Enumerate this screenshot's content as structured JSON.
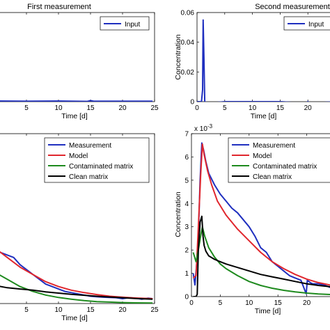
{
  "chart_data": [
    {
      "id": "tl",
      "type": "line",
      "title": "First measurement",
      "xlabel": "Time [d]",
      "ylabel": "",
      "xlim": [
        0,
        25
      ],
      "ylim": [
        0,
        0.06
      ],
      "xticks": [
        "5",
        "10",
        "15",
        "20",
        "25"
      ],
      "yticks": [],
      "legend": "top-right",
      "series": [
        {
          "name": "Input",
          "color": "#1f2fbf",
          "x": [
            0,
            5,
            10,
            14.5,
            15,
            15.5,
            20,
            24.7
          ],
          "y": [
            0.0004,
            0.0003,
            0.0004,
            0.0002,
            0.0007,
            0.0003,
            0.0003,
            0.0003
          ]
        }
      ]
    },
    {
      "id": "tr",
      "type": "line",
      "title": "Second measurement",
      "xlabel": "Time [d]",
      "ylabel": "Concentration",
      "xlim": [
        0,
        25
      ],
      "ylim": [
        0,
        0.06
      ],
      "xticks": [
        "0",
        "5",
        "10",
        "15",
        "20"
      ],
      "yticks": [
        "0",
        "0.02",
        "0.04",
        "0.06"
      ],
      "legend": "top-right",
      "series": [
        {
          "name": "Input",
          "color": "#1f2fbf",
          "x": [
            0,
            0.8,
            1.0,
            1.1,
            1.25,
            1.4,
            2,
            5,
            10,
            15,
            19.5,
            20,
            20.5,
            25
          ],
          "y": [
            0.0,
            0.0,
            0.008,
            0.055,
            0.03,
            0.0,
            -0.001,
            0.0,
            0.0,
            0.0,
            -0.001,
            0.0,
            -0.001,
            0.0
          ]
        }
      ]
    },
    {
      "id": "bl",
      "type": "line",
      "title": "",
      "xlabel": "Time [d]",
      "ylabel": "",
      "xlim": [
        0,
        25
      ],
      "ylim": [
        0,
        0.007
      ],
      "xticks": [
        "5",
        "10",
        "15",
        "20",
        "25"
      ],
      "yticks": [],
      "legend": "top-right",
      "series": [
        {
          "name": "Measurement",
          "color": "#1f2fbf",
          "x": [
            0,
            1,
            2,
            3,
            4,
            5,
            6,
            7,
            8,
            9,
            10,
            11,
            12,
            13,
            14,
            15,
            16,
            17,
            18,
            19,
            20,
            21,
            22,
            23,
            24,
            24.7
          ],
          "y": [
            0.0022,
            0.0021,
            0.002,
            0.0019,
            0.0016,
            0.0014,
            0.0012,
            0.001,
            0.0008,
            0.0007,
            0.0006,
            0.0005,
            0.00045,
            0.0004,
            0.00035,
            0.0003,
            0.00028,
            0.00026,
            0.00025,
            0.00024,
            0.0002,
            0.00024,
            0.00022,
            0.00018,
            0.00022,
            0.0002
          ]
        },
        {
          "name": "Model",
          "color": "#e0262d",
          "x": [
            0,
            2,
            4,
            6,
            8,
            10,
            12,
            14,
            16,
            18,
            20,
            22,
            24.7
          ],
          "y": [
            0.0023,
            0.0019,
            0.0015,
            0.0012,
            0.0009,
            0.0007,
            0.00055,
            0.00045,
            0.00037,
            0.0003,
            0.00026,
            0.00023,
            0.0002
          ]
        },
        {
          "name": "Contaminated matrix",
          "color": "#1e8a1e",
          "x": [
            0,
            2,
            4,
            6,
            8,
            10,
            12,
            14,
            16,
            18,
            20,
            22,
            24.7
          ],
          "y": [
            0.0013,
            0.001,
            0.0007,
            0.0005,
            0.00035,
            0.00025,
            0.00018,
            0.00012,
            8e-05,
            6e-05,
            4e-05,
            3e-05,
            2e-05
          ]
        },
        {
          "name": "Clean matrix",
          "color": "#000000",
          "x": [
            0,
            2,
            4,
            6,
            8,
            10,
            12,
            14,
            16,
            18,
            20,
            22,
            24.7
          ],
          "y": [
            0.00075,
            0.00065,
            0.0006,
            0.00055,
            0.00048,
            0.00043,
            0.00038,
            0.00034,
            0.0003,
            0.00027,
            0.00024,
            0.00021,
            0.00018
          ]
        }
      ]
    },
    {
      "id": "br",
      "type": "line",
      "title": "",
      "xlabel": "Time [d]",
      "ylabel": "Concentration",
      "multiplier": "x 10",
      "multiplier_exp": "-3",
      "xlim": [
        0,
        25
      ],
      "ylim": [
        0,
        7
      ],
      "xticks": [
        "0",
        "5",
        "10",
        "15",
        "20"
      ],
      "yticks": [
        "0",
        "1",
        "2",
        "3",
        "4",
        "5",
        "6",
        "7"
      ],
      "legend": "top-right",
      "series": [
        {
          "name": "Measurement",
          "color": "#1f2fbf",
          "x": [
            0.3,
            0.6,
            0.9,
            1.2,
            1.5,
            1.8,
            2.1,
            2.5,
            3,
            4,
            5,
            6,
            7,
            8,
            9,
            10,
            11,
            12,
            13,
            14,
            15,
            16,
            17,
            18,
            19,
            19.9,
            20.1,
            20.6,
            21,
            22,
            23,
            24,
            25
          ],
          "y": [
            1.0,
            0.5,
            1.4,
            2.6,
            5.0,
            6.6,
            6.3,
            5.8,
            5.3,
            4.8,
            4.4,
            4.1,
            3.8,
            3.6,
            3.3,
            3.0,
            2.6,
            2.1,
            1.9,
            1.5,
            1.3,
            1.1,
            0.9,
            0.8,
            0.7,
            0.12,
            0.7,
            0.6,
            0.55,
            0.55,
            0.5,
            0.4,
            0.4
          ]
        },
        {
          "name": "Model",
          "color": "#e0262d",
          "x": [
            0.3,
            0.8,
            1.2,
            1.6,
            1.9,
            2.2,
            2.8,
            3.5,
            4.5,
            6,
            8,
            10,
            12,
            14,
            16,
            18,
            20,
            22,
            25
          ],
          "y": [
            0.8,
            0.9,
            3.0,
            5.2,
            6.55,
            6.1,
            5.4,
            4.8,
            4.1,
            3.5,
            2.9,
            2.4,
            1.9,
            1.5,
            1.2,
            0.95,
            0.75,
            0.6,
            0.45
          ]
        },
        {
          "name": "Contaminated matrix",
          "color": "#1e8a1e",
          "x": [
            0.3,
            0.8,
            1.2,
            1.6,
            1.9,
            2.3,
            3,
            4,
            5,
            6,
            8,
            10,
            12,
            14,
            16,
            18,
            20,
            22,
            25
          ],
          "y": [
            1.9,
            1.5,
            2.0,
            2.6,
            3.0,
            2.6,
            2.1,
            1.7,
            1.4,
            1.2,
            0.9,
            0.65,
            0.48,
            0.36,
            0.27,
            0.2,
            0.15,
            0.11,
            0.08
          ]
        },
        {
          "name": "Clean matrix",
          "color": "#000000",
          "x": [
            0.3,
            0.8,
            1.0,
            1.2,
            1.5,
            1.8,
            2.0,
            2.2,
            2.5,
            3,
            4,
            5,
            6,
            8,
            10,
            12,
            14,
            16,
            18,
            20,
            22,
            25
          ],
          "y": [
            0.0,
            0.0,
            0.1,
            2.0,
            3.2,
            3.45,
            2.6,
            2.2,
            1.95,
            1.75,
            1.6,
            1.5,
            1.4,
            1.25,
            1.1,
            0.95,
            0.85,
            0.75,
            0.65,
            0.55,
            0.48,
            0.4
          ]
        }
      ]
    }
  ]
}
